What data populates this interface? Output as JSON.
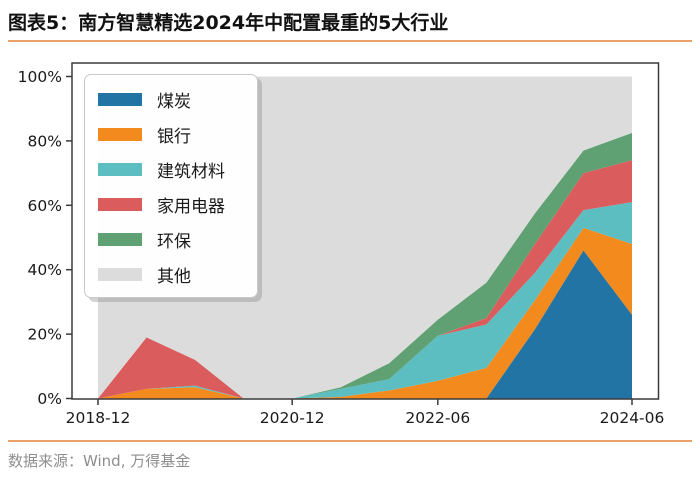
{
  "header": {
    "title": "图表5：南方智慧精选2024年中配置最重的5大行业"
  },
  "footer": {
    "source": "数据来源：Wind, 万得基金"
  },
  "colors": {
    "accent_rule": "#e9a26b",
    "title_text": "#111111",
    "source_text": "#8e8e8e",
    "axis_frame": "#3a3a3a",
    "tick_label": "#1a1a1a",
    "plot_background": "#ffffff"
  },
  "chart_data": {
    "type": "area",
    "stacked": true,
    "unit": "percent",
    "title": "图表5：南方智慧精选2024年中配置最重的5大行业",
    "xlabel": "",
    "ylabel": "",
    "grid": false,
    "legend_position": "upper left",
    "ylim": [
      0,
      104
    ],
    "y_ticks": [
      0,
      20,
      40,
      60,
      80,
      100
    ],
    "y_tick_labels": [
      "0%",
      "20%",
      "40%",
      "60%",
      "80%",
      "100%"
    ],
    "categories": [
      "2018-12",
      "2019-06",
      "2019-12",
      "2020-06",
      "2020-12",
      "2021-06",
      "2021-12",
      "2022-06",
      "2022-12",
      "2023-06",
      "2023-12",
      "2024-06"
    ],
    "x_months": [
      0,
      6,
      12,
      18,
      24,
      30,
      36,
      42,
      48,
      54,
      60,
      66
    ],
    "x_tick_indices": [
      0,
      4,
      7,
      11
    ],
    "x_tick_labels": [
      "2018-12",
      "2020-12",
      "2022-06",
      "2024-06"
    ],
    "series": [
      {
        "id": "coal",
        "name": "煤炭",
        "color": "#2274a5",
        "values": [
          0,
          0,
          0,
          0,
          0,
          0,
          0,
          0,
          0,
          21.5,
          46,
          26
        ]
      },
      {
        "id": "bank",
        "name": "银行",
        "color": "#f38a1e",
        "values": [
          0,
          3,
          3.5,
          0,
          0,
          0.5,
          2.5,
          5.5,
          9.5,
          9,
          7,
          22
        ]
      },
      {
        "id": "building-materials",
        "name": "建筑材料",
        "color": "#5cbec1",
        "values": [
          0,
          0,
          0.5,
          0,
          0,
          2.5,
          3.5,
          14,
          13.5,
          8.5,
          5.5,
          13
        ]
      },
      {
        "id": "home-appliances",
        "name": "家用电器",
        "color": "#da5c5c",
        "values": [
          0,
          16,
          8,
          0,
          0,
          0,
          0,
          0,
          2,
          9,
          11.5,
          13
        ]
      },
      {
        "id": "environmental-protection",
        "name": "环保",
        "color": "#5fa172",
        "values": [
          0,
          0,
          0,
          0,
          0,
          0.5,
          5,
          5,
          11,
          9.5,
          7,
          8.5
        ]
      },
      {
        "id": "other",
        "name": "其他",
        "color": "#dcdcdc",
        "values": [
          100,
          81,
          88,
          100,
          100,
          96.5,
          89,
          75.5,
          64,
          42.5,
          23,
          17.5
        ]
      }
    ]
  }
}
